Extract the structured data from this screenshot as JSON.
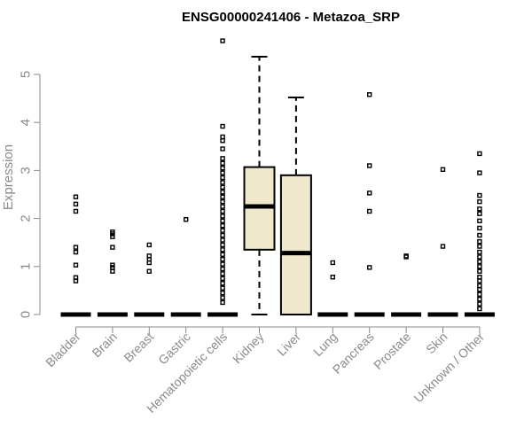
{
  "chart_data": {
    "type": "box",
    "title": "ENSG00000241406 - Metazoa_SRP",
    "ylabel": "Expression",
    "ylim": [
      0,
      5.8
    ],
    "yticks": [
      0,
      1,
      2,
      3,
      4,
      5
    ],
    "categories": [
      "Bladder",
      "Brain",
      "Breast",
      "Gastric",
      "Hematopoietic cells",
      "Kidney",
      "Liver",
      "Lung",
      "Pancreas",
      "Prostate",
      "Skin",
      "Unknown / Other"
    ],
    "boxes": [
      {
        "name": "Bladder",
        "q1": 0,
        "median": 0,
        "q3": 0,
        "whisker_low": 0,
        "whisker_high": 0,
        "outliers": [
          0.7,
          0.77,
          1.03,
          1.3,
          1.4,
          2.15,
          2.3,
          2.45
        ]
      },
      {
        "name": "Brain",
        "q1": 0,
        "median": 0,
        "q3": 0,
        "whisker_low": 0,
        "whisker_high": 0,
        "outliers": [
          0.9,
          0.98,
          1.03,
          1.4,
          1.62,
          1.68,
          1.72
        ]
      },
      {
        "name": "Breast",
        "q1": 0,
        "median": 0,
        "q3": 0,
        "whisker_low": 0,
        "whisker_high": 0,
        "outliers": [
          0.9,
          1.08,
          1.15,
          1.22,
          1.45
        ]
      },
      {
        "name": "Gastric",
        "q1": 0,
        "median": 0,
        "q3": 0,
        "whisker_low": 0,
        "whisker_high": 0,
        "outliers": [
          1.98
        ]
      },
      {
        "name": "Hematopoietic cells",
        "q1": 0,
        "median": 0,
        "q3": 0,
        "whisker_low": 0,
        "whisker_high": 0,
        "outliers": [
          0.25,
          0.35,
          0.45,
          0.55,
          0.65,
          0.75,
          0.85,
          0.95,
          1.05,
          1.15,
          1.25,
          1.35,
          1.45,
          1.55,
          1.65,
          1.75,
          1.85,
          1.95,
          2.05,
          2.15,
          2.25,
          2.35,
          2.45,
          2.55,
          2.65,
          2.75,
          2.85,
          2.95,
          3.05,
          3.15,
          3.25,
          3.45,
          3.62,
          3.7,
          3.92,
          5.7
        ]
      },
      {
        "name": "Kidney",
        "q1": 1.35,
        "median": 2.25,
        "q3": 3.07,
        "whisker_low": 0,
        "whisker_high": 5.37,
        "outliers": []
      },
      {
        "name": "Liver",
        "q1": 0,
        "median": 1.28,
        "q3": 2.9,
        "whisker_low": 0,
        "whisker_high": 4.52,
        "outliers": []
      },
      {
        "name": "Lung",
        "q1": 0,
        "median": 0,
        "q3": 0,
        "whisker_low": 0,
        "whisker_high": 0,
        "outliers": [
          0.78,
          1.08
        ]
      },
      {
        "name": "Pancreas",
        "q1": 0,
        "median": 0,
        "q3": 0,
        "whisker_low": 0,
        "whisker_high": 0,
        "outliers": [
          0.98,
          2.15,
          2.53,
          3.1,
          4.58
        ]
      },
      {
        "name": "Prostate",
        "q1": 0,
        "median": 0,
        "q3": 0,
        "whisker_low": 0,
        "whisker_high": 0,
        "outliers": [
          1.2,
          1.22
        ]
      },
      {
        "name": "Skin",
        "q1": 0,
        "median": 0,
        "q3": 0,
        "whisker_low": 0,
        "whisker_high": 0,
        "outliers": [
          1.42,
          3.02
        ]
      },
      {
        "name": "Unknown / Other",
        "q1": 0,
        "median": 0,
        "q3": 0,
        "whisker_low": 0,
        "whisker_high": 0,
        "outliers": [
          0.12,
          0.22,
          0.32,
          0.42,
          0.52,
          0.6,
          0.7,
          0.78,
          0.9,
          1.0,
          1.1,
          1.2,
          1.3,
          1.42,
          1.52,
          1.65,
          1.8,
          1.95,
          2.1,
          2.2,
          2.35,
          2.48,
          2.95,
          3.35
        ]
      }
    ],
    "colors": {
      "box_fill": "#efe8cd",
      "axis": "#8a8a8a",
      "title": "#000000"
    },
    "grid": false,
    "legend": "none"
  }
}
